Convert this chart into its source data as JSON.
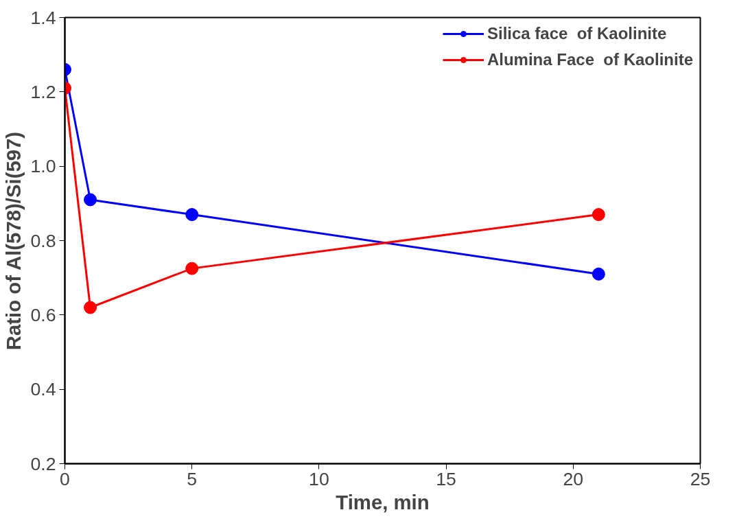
{
  "chart_data": {
    "type": "line",
    "xlabel": "Time, min",
    "ylabel": "Ratio of Al(578)/Si(597)",
    "x": [
      0,
      1,
      5,
      21
    ],
    "series": [
      {
        "name": "Silica face  of Kaolinite",
        "color": "#0000ff",
        "values": [
          1.26,
          0.91,
          0.87,
          0.71
        ]
      },
      {
        "name": "Alumina Face  of Kaolinite",
        "color": "#ff0000",
        "values": [
          1.21,
          0.62,
          0.725,
          0.87
        ]
      }
    ],
    "xlim": [
      0,
      25
    ],
    "xticks": [
      0,
      5,
      10,
      15,
      20,
      25
    ],
    "ylim": [
      0.2,
      1.4
    ],
    "yticks": [
      {
        "value": 0.2,
        "label": "0.2"
      },
      {
        "value": 0.4,
        "label": "0.4"
      },
      {
        "value": 0.6,
        "label": "0.6"
      },
      {
        "value": 0.8,
        "label": "0.8"
      },
      {
        "value": 1.0,
        "label": "1.0"
      },
      {
        "value": 1.2,
        "label": "1.2"
      },
      {
        "value": 1.4,
        "label": "1.4"
      }
    ],
    "grid": false,
    "legend": "top right",
    "marker": "circle",
    "line_style": "solid"
  }
}
